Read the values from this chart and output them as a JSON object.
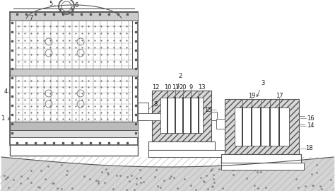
{
  "lc": "#555555",
  "lc2": "#888888",
  "hatch_fc": "#d8d8d8",
  "white": "#ffffff",
  "ground_fc": "#d4d4d4",
  "figsize": [
    4.74,
    2.7
  ],
  "dpi": 100,
  "label_fs": 6.0,
  "xlim": [
    0,
    474
  ],
  "ylim": [
    0,
    270
  ]
}
